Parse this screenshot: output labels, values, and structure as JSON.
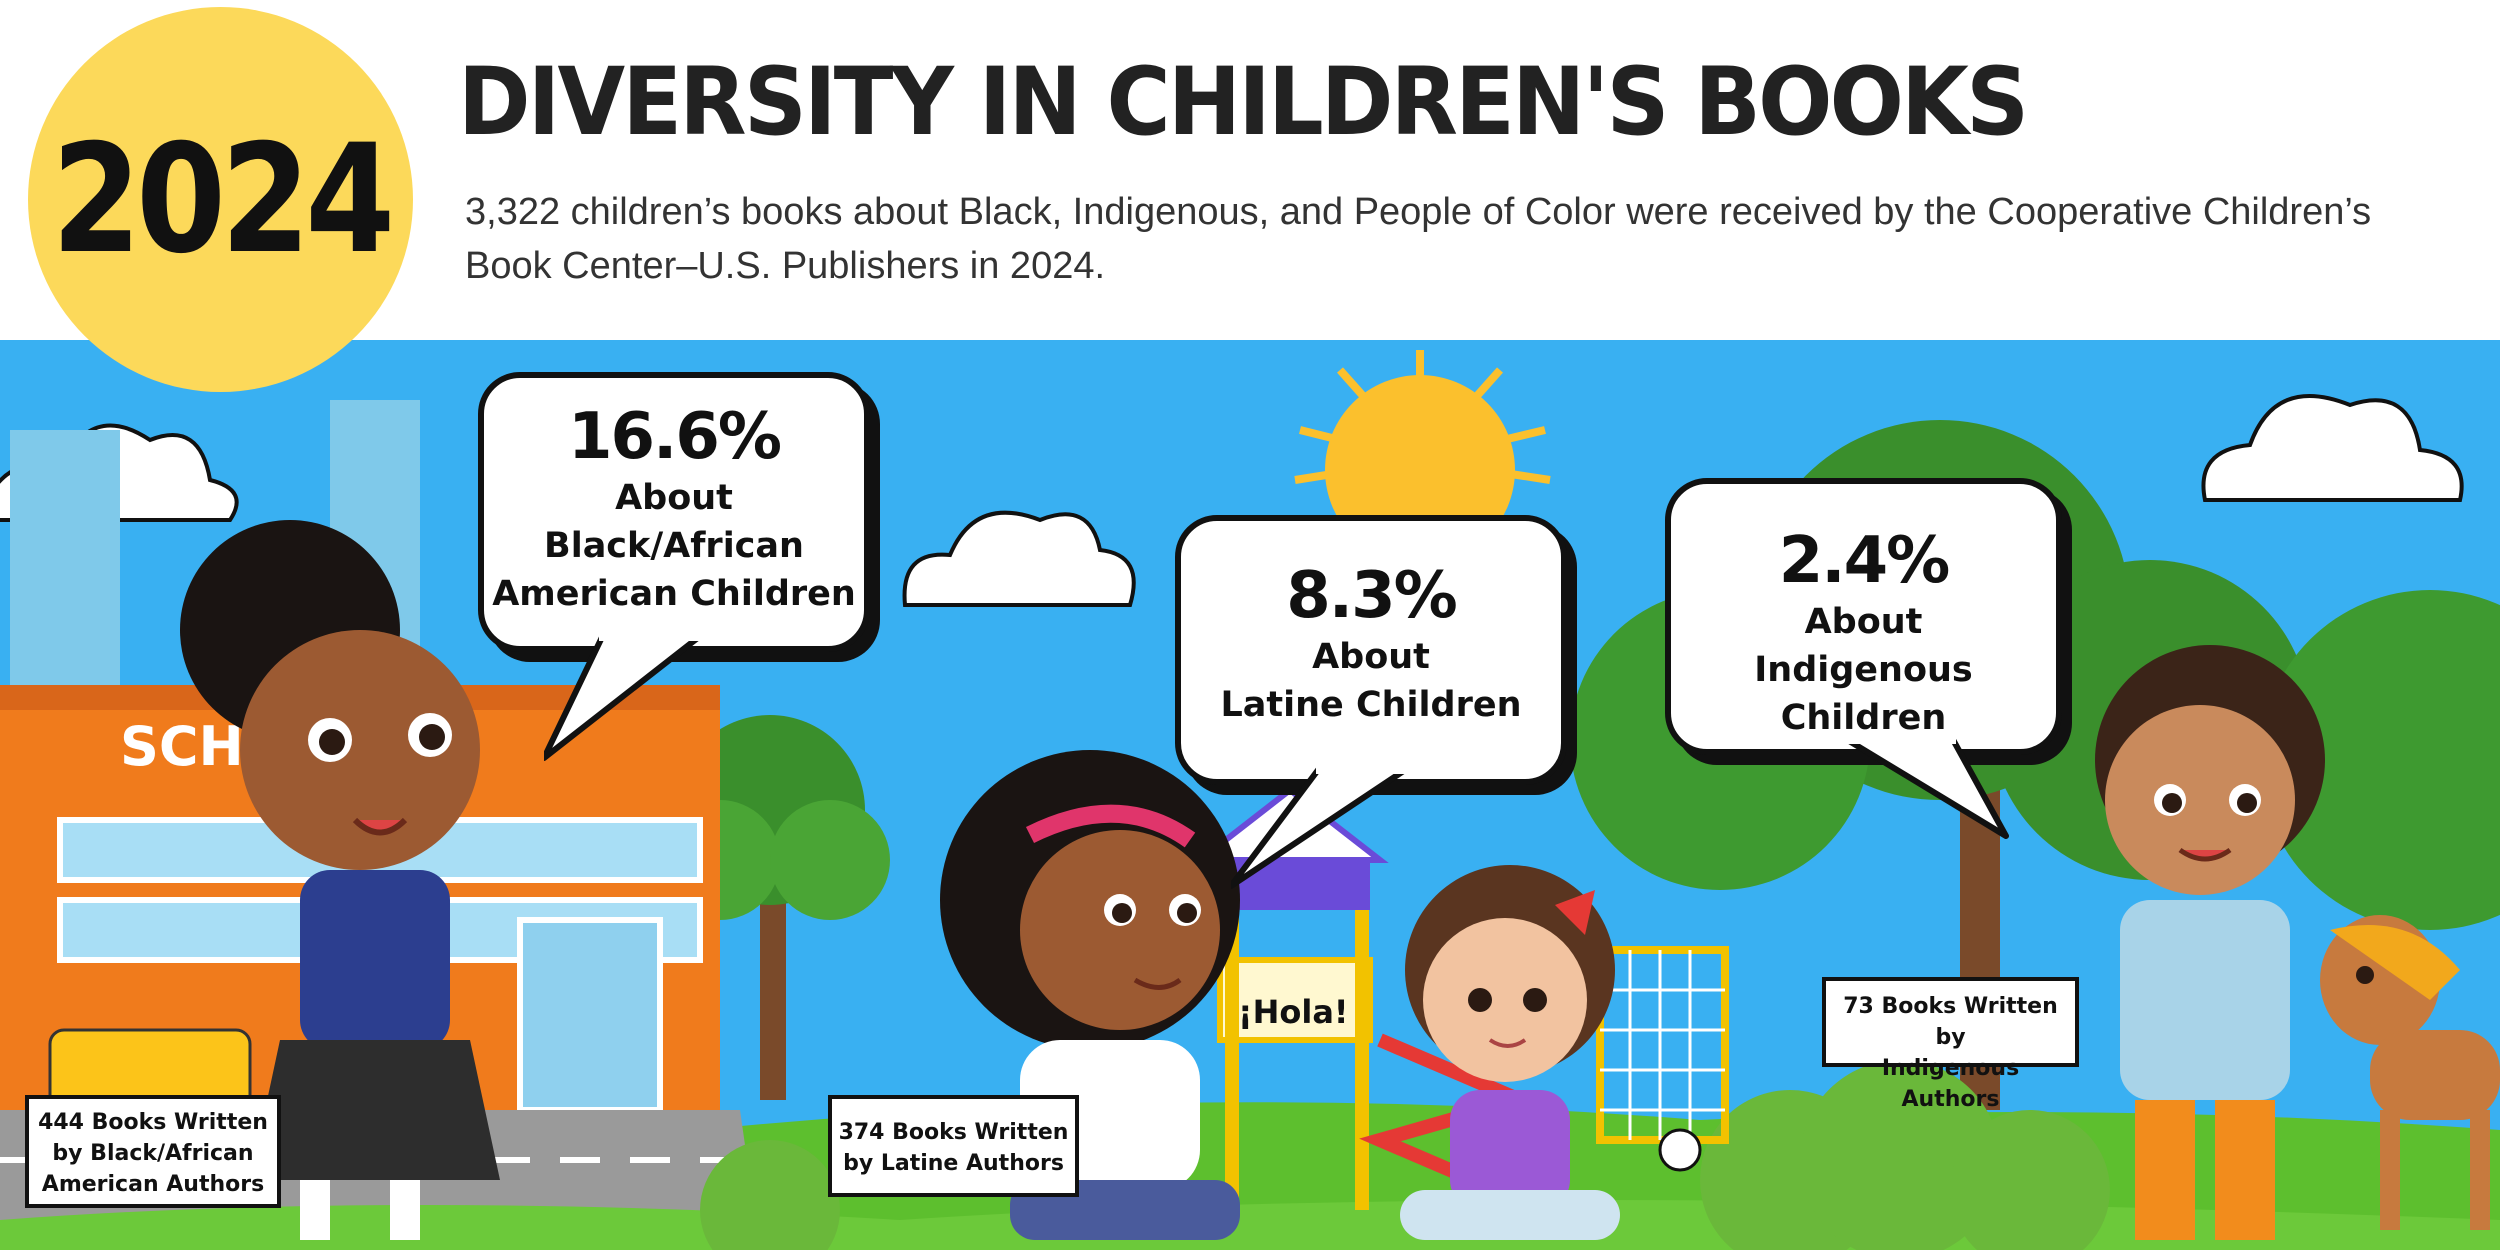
{
  "header": {
    "year": "2024",
    "title": "DIVERSITY IN CHILDREN'S BOOKS",
    "subtitle": "3,322 children’s books about Black, Indigenous, and People of Color were received by the Cooperative Children’s Book Center–U.S. Publishers in 2024."
  },
  "bubbles": [
    {
      "percent": "16.6%",
      "label_1": "About",
      "label_2": "Black/African",
      "label_3": "American Children"
    },
    {
      "percent": "8.3%",
      "label_1": "About",
      "label_2": "Latine Children"
    },
    {
      "percent": "2.4%",
      "label_1": "About",
      "label_2": "Indigenous Children"
    }
  ],
  "authors": [
    {
      "line_1": "444 Books Written",
      "line_2": "by Black/African",
      "line_3": "American Authors"
    },
    {
      "line_1": "374 Books Written",
      "line_2": "by Latine Authors"
    },
    {
      "line_1": "73 Books Written by",
      "line_2": "Indigenous Authors"
    }
  ],
  "scene": {
    "school_sign": "SCHO",
    "playhouse_sign": "¡Hola!",
    "colors": {
      "sky": "#39b0f2",
      "grass": "#5dbf2e",
      "sun": "#fbc02d",
      "accent_yellow": "#fcd95a",
      "school": "#f07b1c",
      "tree": "#3a8f2c"
    }
  }
}
